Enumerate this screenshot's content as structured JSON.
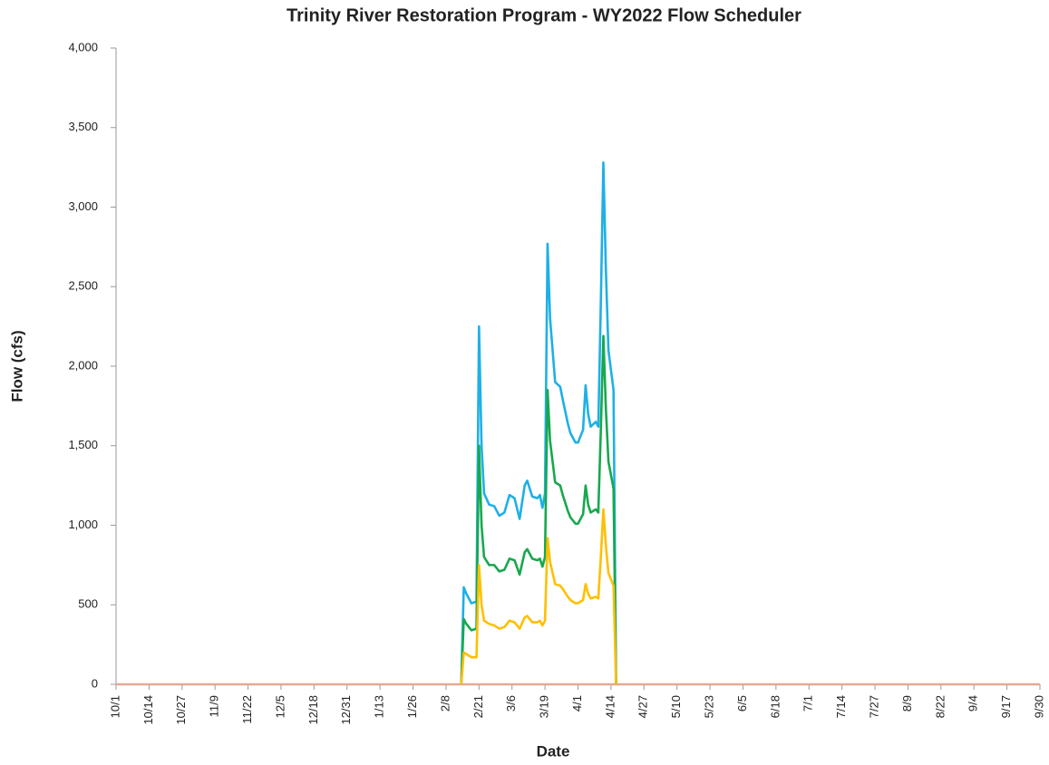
{
  "chart_data": {
    "type": "line",
    "title": "Trinity River Restoration Program - WY2022 Flow Scheduler",
    "xlabel": "Date",
    "ylabel": "Flow (cfs)",
    "xlim": [
      0,
      364
    ],
    "xticks": [
      {
        "value": 0,
        "label": "10/1"
      },
      {
        "value": 13,
        "label": "10/14"
      },
      {
        "value": 26,
        "label": "10/27"
      },
      {
        "value": 39,
        "label": "11/9"
      },
      {
        "value": 52,
        "label": "11/22"
      },
      {
        "value": 65,
        "label": "12/5"
      },
      {
        "value": 78,
        "label": "12/18"
      },
      {
        "value": 91,
        "label": "12/31"
      },
      {
        "value": 104,
        "label": "1/13"
      },
      {
        "value": 117,
        "label": "1/26"
      },
      {
        "value": 130,
        "label": "2/8"
      },
      {
        "value": 143,
        "label": "2/21"
      },
      {
        "value": 156,
        "label": "3/6"
      },
      {
        "value": 169,
        "label": "3/19"
      },
      {
        "value": 182,
        "label": "4/1"
      },
      {
        "value": 195,
        "label": "4/14"
      },
      {
        "value": 208,
        "label": "4/27"
      },
      {
        "value": 221,
        "label": "5/10"
      },
      {
        "value": 234,
        "label": "5/23"
      },
      {
        "value": 247,
        "label": "6/5"
      },
      {
        "value": 260,
        "label": "6/18"
      },
      {
        "value": 273,
        "label": "7/1"
      },
      {
        "value": 286,
        "label": "7/14"
      },
      {
        "value": 299,
        "label": "7/27"
      },
      {
        "value": 312,
        "label": "8/9"
      },
      {
        "value": 325,
        "label": "8/22"
      },
      {
        "value": 338,
        "label": "9/4"
      },
      {
        "value": 351,
        "label": "9/17"
      },
      {
        "value": 364,
        "label": "9/30"
      }
    ],
    "ylim": [
      0,
      4000
    ],
    "yticks": [
      0,
      500,
      {
        "value": 1000,
        "label": "1,000"
      },
      {
        "value": 1500,
        "label": "1,500"
      },
      {
        "value": 2000,
        "label": "2,000"
      },
      {
        "value": 2500,
        "label": "2,500"
      },
      {
        "value": 3000,
        "label": "3,000"
      },
      {
        "value": 3500,
        "label": "3,500"
      },
      {
        "value": 4000,
        "label": "4,000"
      }
    ],
    "grid": false,
    "series": [
      {
        "color": "#e3a995",
        "x": [
          0,
          364
        ],
        "values": [
          0,
          0
        ]
      },
      {
        "color": "#1eb0e6",
        "x": [
          136,
          137,
          138,
          140,
          142,
          143,
          144,
          145,
          147,
          149,
          151,
          153,
          155,
          157,
          159,
          161,
          162,
          164,
          166,
          167,
          168,
          169,
          170,
          171,
          173,
          175,
          176,
          178,
          179,
          181,
          182,
          184,
          185,
          186,
          187,
          189,
          190,
          191,
          192,
          193,
          194,
          196,
          197
        ],
        "values": [
          0,
          610,
          570,
          510,
          520,
          2250,
          1500,
          1200,
          1130,
          1120,
          1060,
          1080,
          1190,
          1170,
          1040,
          1250,
          1280,
          1180,
          1170,
          1190,
          1110,
          1200,
          2770,
          2300,
          1900,
          1870,
          1790,
          1640,
          1580,
          1520,
          1520,
          1600,
          1880,
          1700,
          1620,
          1650,
          1620,
          2400,
          3280,
          2600,
          2100,
          1850,
          0
        ]
      },
      {
        "color": "#17a84e",
        "x": [
          136,
          137,
          138,
          140,
          142,
          143,
          144,
          145,
          147,
          149,
          151,
          153,
          155,
          157,
          159,
          161,
          162,
          164,
          166,
          167,
          168,
          169,
          170,
          171,
          173,
          175,
          176,
          178,
          179,
          181,
          182,
          184,
          185,
          186,
          187,
          189,
          190,
          191,
          192,
          193,
          194,
          196,
          197
        ],
        "values": [
          0,
          410,
          380,
          340,
          350,
          1500,
          1000,
          800,
          750,
          750,
          710,
          720,
          790,
          780,
          690,
          830,
          850,
          790,
          780,
          790,
          740,
          800,
          1850,
          1530,
          1270,
          1250,
          1190,
          1090,
          1050,
          1010,
          1010,
          1070,
          1250,
          1130,
          1080,
          1100,
          1080,
          1600,
          2190,
          1730,
          1400,
          1230,
          0
        ]
      },
      {
        "color": "#ffbf00",
        "x": [
          136,
          137,
          138,
          140,
          142,
          143,
          144,
          145,
          147,
          149,
          151,
          153,
          155,
          157,
          159,
          161,
          162,
          164,
          166,
          167,
          168,
          169,
          170,
          171,
          173,
          175,
          176,
          178,
          179,
          181,
          182,
          184,
          185,
          186,
          187,
          189,
          190,
          191,
          192,
          193,
          194,
          196,
          197
        ],
        "values": [
          0,
          200,
          190,
          170,
          170,
          750,
          500,
          400,
          380,
          370,
          350,
          360,
          400,
          390,
          350,
          420,
          430,
          390,
          390,
          400,
          370,
          400,
          920,
          770,
          630,
          620,
          600,
          550,
          530,
          510,
          510,
          530,
          630,
          570,
          540,
          550,
          540,
          800,
          1100,
          870,
          700,
          620,
          0
        ]
      }
    ]
  }
}
